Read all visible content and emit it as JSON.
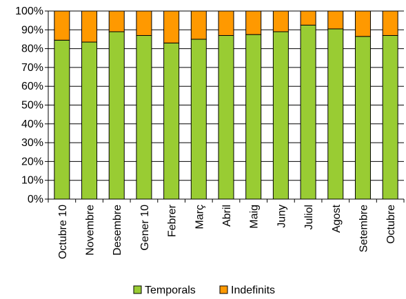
{
  "chart_data": {
    "type": "bar",
    "stacked": true,
    "percent_stacked": true,
    "categories": [
      "Octubre 10",
      "Novembre",
      "Desembre",
      "Gener 10",
      "Febrer",
      "Març",
      "Abril",
      "Maig",
      "Juny",
      "Juliol",
      "Agost",
      "Setembre",
      "Octubre"
    ],
    "series": [
      {
        "name": "Temporals",
        "color": "#99cc33",
        "values": [
          84.5,
          83.5,
          89.0,
          87.0,
          83.0,
          85.0,
          87.0,
          87.5,
          89.0,
          92.5,
          90.5,
          86.5,
          87.0
        ]
      },
      {
        "name": "Indefinits",
        "color": "#ff9900",
        "values": [
          15.5,
          16.5,
          11.0,
          13.0,
          17.0,
          15.0,
          13.0,
          12.5,
          11.0,
          7.5,
          9.5,
          13.5,
          13.0
        ]
      }
    ],
    "ylim": [
      0,
      100
    ],
    "yticks": [
      "0%",
      "10%",
      "20%",
      "30%",
      "40%",
      "50%",
      "60%",
      "70%",
      "80%",
      "90%",
      "100%"
    ],
    "grid": true,
    "legend_position": "bottom"
  }
}
